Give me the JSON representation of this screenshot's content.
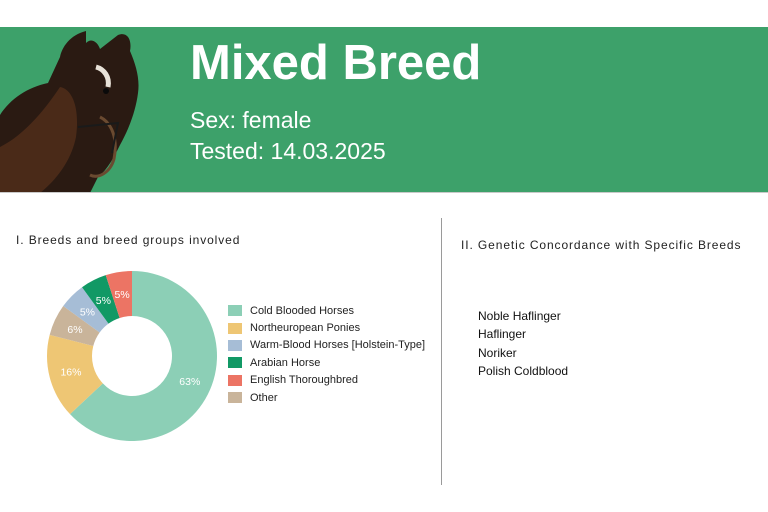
{
  "header": {
    "title": "Mixed Breed",
    "sex": "Sex: female",
    "tested": "Tested: 14.03.2025",
    "banner_color": "#3da16a"
  },
  "section1": {
    "title": "I. Breeds and breed groups involved"
  },
  "section2": {
    "title": "II. Genetic Concordance with Specific Breeds",
    "breeds": [
      "Noble Haflinger",
      "Haflinger",
      "Noriker",
      "Polish Coldblood"
    ]
  },
  "chart_data": {
    "type": "pie",
    "variant": "donut",
    "slices": [
      {
        "label": "Cold Blooded Horses",
        "value": 63,
        "text": "63%",
        "color": "#8ccfb6"
      },
      {
        "label": "Northeuropean Ponies",
        "value": 16,
        "text": "16%",
        "color": "#eec674"
      },
      {
        "label": "Other",
        "value": 6,
        "text": "6%",
        "color": "#c9b49a"
      },
      {
        "label": "Warm-Blood Horses [Holstein-Type]",
        "value": 5,
        "text": "5%",
        "color": "#a6bdd6"
      },
      {
        "label": "Arabian Horse",
        "value": 5,
        "text": "5%",
        "color": "#119965"
      },
      {
        "label": "English Thoroughbred",
        "value": 5,
        "text": "5%",
        "color": "#ec7464"
      }
    ],
    "legend": [
      {
        "label": "Cold Blooded Horses",
        "color": "#8ccfb6"
      },
      {
        "label": "Northeuropean Ponies",
        "color": "#eec674"
      },
      {
        "label": "Warm-Blood Horses [Holstein-Type]",
        "color": "#a6bdd6"
      },
      {
        "label": "Arabian Horse",
        "color": "#119965"
      },
      {
        "label": "English Thoroughbred",
        "color": "#ec7464"
      },
      {
        "label": "Other",
        "color": "#c9b49a"
      }
    ],
    "legend_position": "right"
  }
}
